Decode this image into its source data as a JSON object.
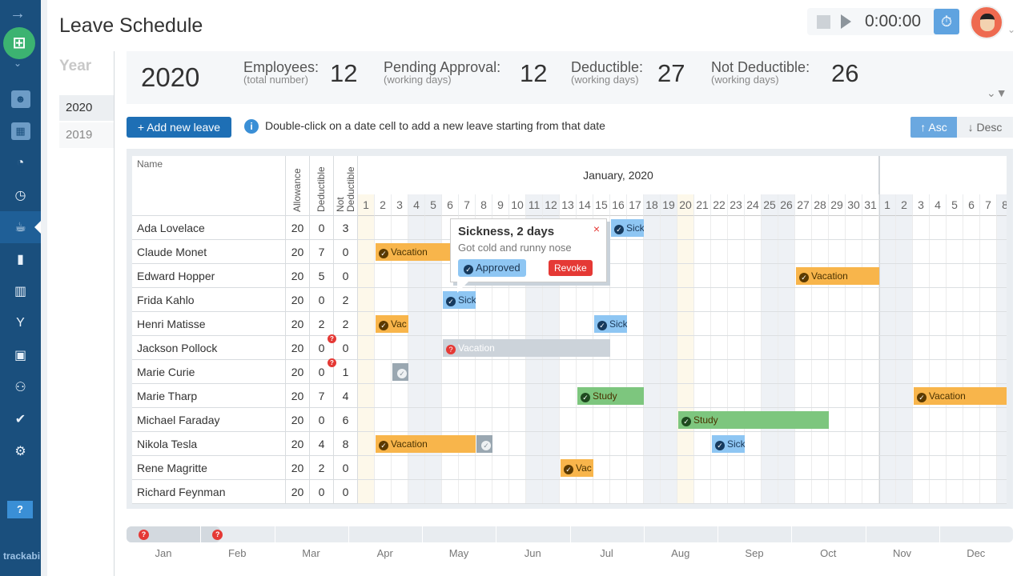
{
  "app": {
    "brand": "trackabi",
    "title": "Leave Schedule"
  },
  "sidebar": {
    "items": [
      "profile-icon",
      "company-icon",
      "dashboard-icon",
      "clock-icon",
      "leave-icon",
      "document-icon",
      "chip-icon",
      "person-icon",
      "contacts-icon",
      "team-icon",
      "briefcase-icon",
      "gear-icon"
    ],
    "active": "leave-icon",
    "help": "?"
  },
  "timer": {
    "value": "0:00:00"
  },
  "years": {
    "label": "Year",
    "items": [
      "2020",
      "2019"
    ],
    "selected": "2020"
  },
  "stats": {
    "year": "2020",
    "employees": {
      "label": "Employees:",
      "sub": "(total number)",
      "value": "12"
    },
    "pending": {
      "label": "Pending Approval:",
      "sub": "(working days)",
      "value": "12"
    },
    "deductible": {
      "label": "Deductible:",
      "sub": "(working days)",
      "value": "27"
    },
    "not_deductible": {
      "label": "Not Deductible:",
      "sub": "(working days)",
      "value": "26"
    }
  },
  "toolbar": {
    "add": "+ Add new leave",
    "info": "Double-click on a date cell to add a new leave starting from that date",
    "asc": "↑ Asc",
    "desc": "↓ Desc"
  },
  "table": {
    "headers": {
      "name": "Name",
      "allowance": "Allowance",
      "deductible": "Deductible",
      "not_deductible_1": "Not",
      "not_deductible_2": "Deductible"
    },
    "month": "January, 2020",
    "jan_days": 31,
    "feb_days_visible": 8,
    "weekends_jan": [
      4,
      5,
      11,
      12,
      18,
      19,
      25,
      26
    ],
    "holidays_jan": [
      1,
      20
    ],
    "weekends_feb": [
      1,
      2,
      8
    ],
    "colors": {
      "Vacation": "#f8b54b",
      "Sick": "#8ec6f3",
      "Study": "#7dc67e",
      "pending": "#ccd3da",
      "done": "#9aa7b1"
    },
    "rows": [
      {
        "name": "Ada Lovelace",
        "allowance": "20",
        "deductible": "0",
        "not_deductible": "3",
        "leaves": [
          {
            "type": "Sick",
            "label": "Sickn...",
            "month": "jan",
            "start": 16,
            "end": 17,
            "status": "approved"
          }
        ]
      },
      {
        "name": "Claude Monet",
        "allowance": "20",
        "deductible": "7",
        "not_deductible": "0",
        "leaves": [
          {
            "type": "Vacation",
            "label": "Vacation",
            "month": "jan",
            "start": 2,
            "end": 10,
            "status": "approved"
          }
        ]
      },
      {
        "name": "Edward Hopper",
        "allowance": "20",
        "deductible": "5",
        "not_deductible": "0",
        "leaves": [
          {
            "type": "Vacation",
            "label": "Vacation",
            "month": "jan",
            "start": 27,
            "end": 31,
            "status": "approved"
          }
        ]
      },
      {
        "name": "Frida Kahlo",
        "allowance": "20",
        "deductible": "0",
        "not_deductible": "2",
        "leaves": [
          {
            "type": "Sick",
            "label": "Sick",
            "month": "jan",
            "start": 6,
            "end": 7,
            "status": "approved"
          }
        ]
      },
      {
        "name": "Henri Matisse",
        "allowance": "20",
        "deductible": "2",
        "not_deductible": "2",
        "leaves": [
          {
            "type": "Vacation",
            "label": "Vac",
            "month": "jan",
            "start": 2,
            "end": 3,
            "status": "approved"
          },
          {
            "type": "Sick",
            "label": "Sick",
            "month": "jan",
            "start": 15,
            "end": 16,
            "status": "approved"
          }
        ]
      },
      {
        "name": "Jackson Pollock",
        "allowance": "20",
        "deductible": "0",
        "not_deductible": "0",
        "pending": true,
        "leaves": [
          {
            "type": "Vacation",
            "label": "Vacation",
            "month": "jan",
            "start": 6,
            "end": 15,
            "status": "pending"
          }
        ]
      },
      {
        "name": "Marie Curie",
        "allowance": "20",
        "deductible": "0",
        "not_deductible": "1",
        "pending": true,
        "leaves": [
          {
            "type": "done",
            "label": "",
            "month": "jan",
            "start": 3,
            "end": 3,
            "status": "done"
          }
        ]
      },
      {
        "name": "Marie Tharp",
        "allowance": "20",
        "deductible": "7",
        "not_deductible": "4",
        "leaves": [
          {
            "type": "Study",
            "label": "Study",
            "month": "jan",
            "start": 14,
            "end": 17,
            "status": "approved"
          },
          {
            "type": "Vacation",
            "label": "Vacation",
            "month": "feb",
            "start": 3,
            "end": 8,
            "status": "approved"
          }
        ]
      },
      {
        "name": "Michael Faraday",
        "allowance": "20",
        "deductible": "0",
        "not_deductible": "6",
        "leaves": [
          {
            "type": "Study",
            "label": "Study",
            "month": "jan",
            "start": 20,
            "end": 28,
            "status": "approved"
          }
        ]
      },
      {
        "name": "Nikola Tesla",
        "allowance": "20",
        "deductible": "4",
        "not_deductible": "8",
        "leaves": [
          {
            "type": "Vacation",
            "label": "Vacation",
            "month": "jan",
            "start": 2,
            "end": 7,
            "status": "approved"
          },
          {
            "type": "done",
            "label": "",
            "month": "jan",
            "start": 8,
            "end": 8,
            "status": "done"
          },
          {
            "type": "Sick",
            "label": "Sick",
            "month": "jan",
            "start": 22,
            "end": 23,
            "status": "approved"
          }
        ]
      },
      {
        "name": "Rene Magritte",
        "allowance": "20",
        "deductible": "2",
        "not_deductible": "0",
        "leaves": [
          {
            "type": "Vacation",
            "label": "Vac",
            "month": "jan",
            "start": 13,
            "end": 14,
            "status": "approved"
          }
        ]
      },
      {
        "name": "Richard Feynman",
        "allowance": "20",
        "deductible": "0",
        "not_deductible": "0",
        "leaves": []
      }
    ]
  },
  "popup": {
    "title": "Sickness, 2 days",
    "note": "Got cold and runny nose",
    "status": "Approved",
    "revoke": "Revoke",
    "close": "×"
  },
  "timeline": {
    "months": [
      "Jan",
      "Feb",
      "Mar",
      "Apr",
      "May",
      "Jun",
      "Jul",
      "Aug",
      "Sep",
      "Oct",
      "Nov",
      "Dec"
    ],
    "pending_markers": [
      "Jan",
      "Feb"
    ]
  }
}
